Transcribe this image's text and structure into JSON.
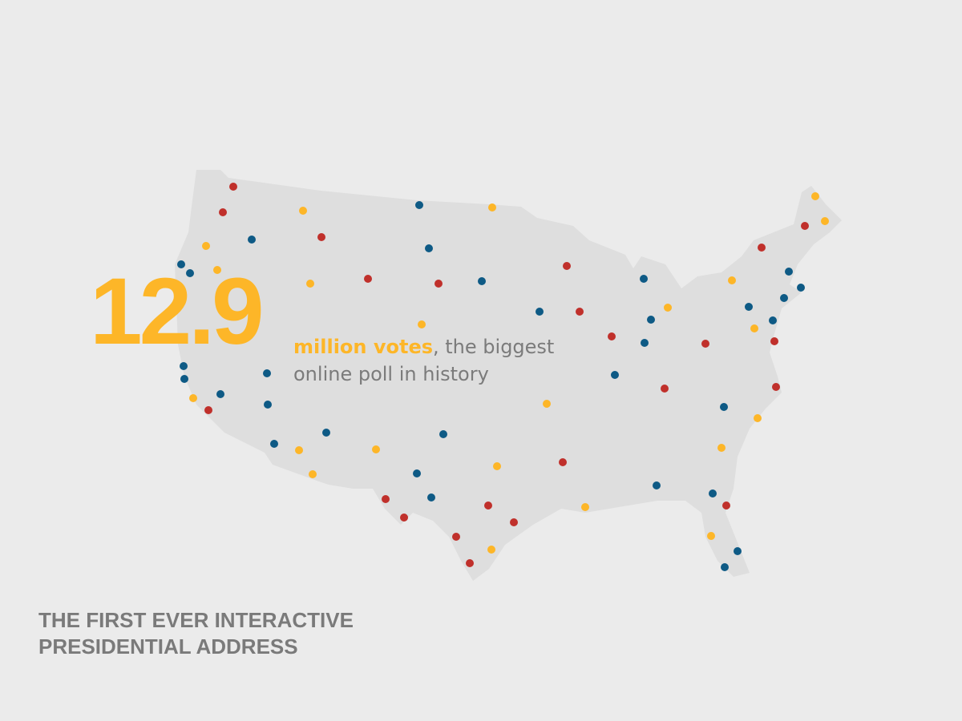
{
  "headline": {
    "number": "12.9",
    "highlight": "million votes",
    "rest": ", the biggest",
    "line2": "online poll in history"
  },
  "footer": {
    "line1": "THE FIRST EVER INTERACTIVE",
    "line2": "PRESIDENTIAL ADDRESS"
  }
}
